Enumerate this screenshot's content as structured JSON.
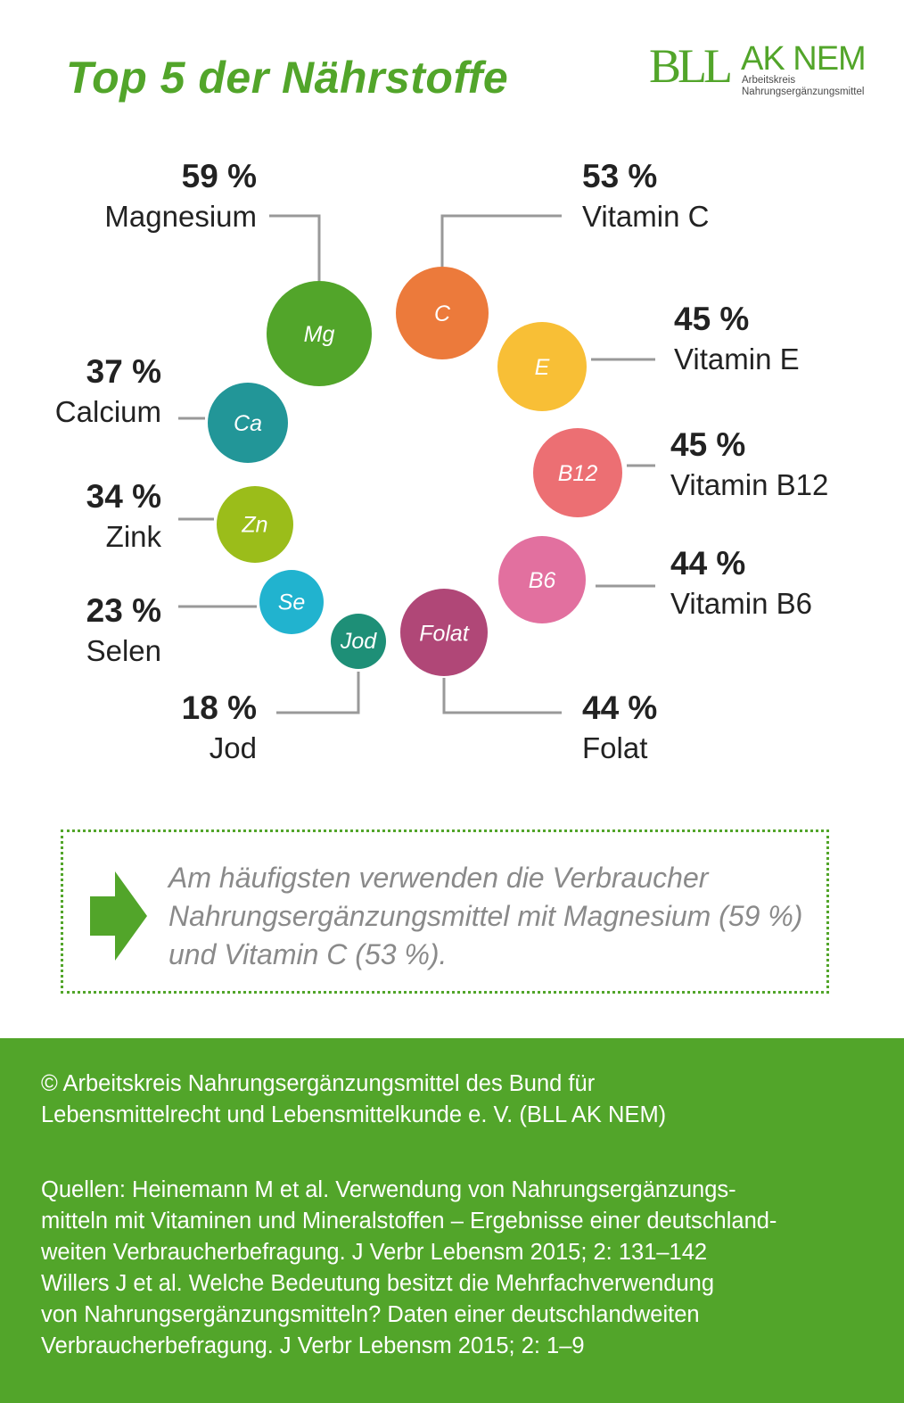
{
  "title": "Top 5 der Nährstoffe",
  "logo": {
    "mark": "BLL",
    "name": "AK NEM",
    "sub1": "Arbeitskreis",
    "sub2": "Nahrungsergänzungsmittel"
  },
  "colors": {
    "brand_green": "#52a52a",
    "connector": "#999999",
    "note_text": "#8a8a8a"
  },
  "chart_data": {
    "type": "bubble-ring",
    "unit": "%",
    "nutrients": [
      {
        "symbol": "Mg",
        "name": "Magnesium",
        "value": 59,
        "pct": "59 %",
        "color": "#52a52a"
      },
      {
        "symbol": "C",
        "name": "Vitamin C",
        "value": 53,
        "pct": "53 %",
        "color": "#ec7a3b"
      },
      {
        "symbol": "E",
        "name": "Vitamin E",
        "value": 45,
        "pct": "45 %",
        "color": "#f8bf36"
      },
      {
        "symbol": "B12",
        "name": "Vitamin B12",
        "value": 45,
        "pct": "45 %",
        "color": "#ec6f73"
      },
      {
        "symbol": "B6",
        "name": "Vitamin B6",
        "value": 44,
        "pct": "44 %",
        "color": "#e2709f"
      },
      {
        "symbol": "Folat",
        "name": "Folat",
        "value": 44,
        "pct": "44 %",
        "color": "#b04777"
      },
      {
        "symbol": "Jod",
        "name": "Jod",
        "value": 18,
        "pct": "18 %",
        "color": "#1e8f77"
      },
      {
        "symbol": "Se",
        "name": "Selen",
        "value": 23,
        "pct": "23 %",
        "color": "#21b3cf"
      },
      {
        "symbol": "Zn",
        "name": "Zink",
        "value": 34,
        "pct": "34 %",
        "color": "#9bbd1a"
      },
      {
        "symbol": "Ca",
        "name": "Calcium",
        "value": 37,
        "pct": "37 %",
        "color": "#229698"
      }
    ]
  },
  "note": {
    "text": "Am häufigsten verwenden die Verbraucher Nahrungsergänzungsmittel mit Magnesium (59 %) und Vitamin C (53 %)."
  },
  "footer": {
    "copyright": "© Arbeitskreis Nahrungsergänzungsmittel des Bund für\nLebensmittelrecht und Lebensmittelkunde e. V. (BLL AK NEM)",
    "sources": "Quellen: Heinemann M et al. Verwendung von Nahrungsergänzungs-\nmitteln mit Vitaminen und Mineralstoffen – Ergebnisse einer deutschland-\nweiten Verbraucherbefragung. J Verbr Lebensm 2015; 2: 131–142\nWillers J et al. Welche Bedeutung besitzt die Mehrfachverwendung\nvon Nahrungsergänzungsmitteln? Daten einer deutschlandweiten\nVerbraucherbefragung. J Verbr Lebensm 2015; 2: 1–9"
  }
}
